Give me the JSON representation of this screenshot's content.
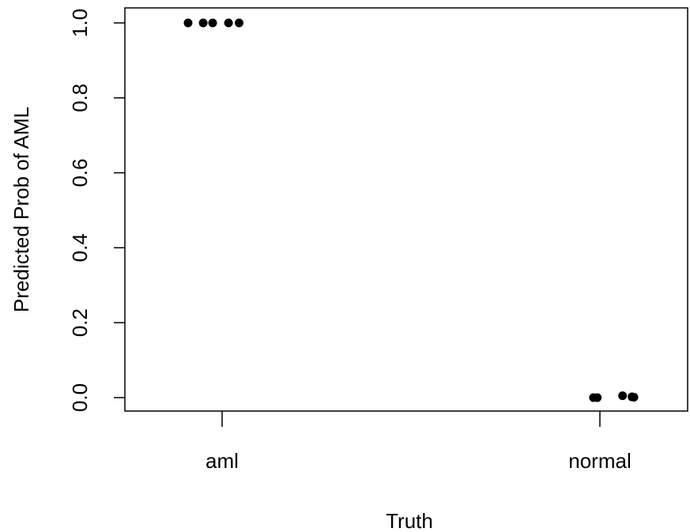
{
  "chart_data": {
    "type": "scatter",
    "title": "",
    "xlabel": "Truth",
    "ylabel": "Predicted Prob of AML",
    "categories": [
      "aml",
      "normal"
    ],
    "ylim": [
      0,
      1
    ],
    "yticks": [
      "0.0",
      "0.2",
      "0.4",
      "0.6",
      "0.8",
      "1.0"
    ],
    "points": [
      {
        "category": "aml",
        "jitter": -0.09,
        "y": 1.0
      },
      {
        "category": "aml",
        "jitter": -0.05,
        "y": 1.0
      },
      {
        "category": "aml",
        "jitter": -0.025,
        "y": 1.0
      },
      {
        "category": "aml",
        "jitter": 0.017,
        "y": 1.0
      },
      {
        "category": "aml",
        "jitter": 0.045,
        "y": 1.0
      },
      {
        "category": "normal",
        "jitter": -0.017,
        "y": 0.0
      },
      {
        "category": "normal",
        "jitter": -0.007,
        "y": 0.0
      },
      {
        "category": "normal",
        "jitter": 0.06,
        "y": 0.005
      },
      {
        "category": "normal",
        "jitter": 0.085,
        "y": 0.002
      },
      {
        "category": "normal",
        "jitter": 0.09,
        "y": 0.001
      }
    ],
    "grid": false,
    "point_color": "#000000"
  }
}
